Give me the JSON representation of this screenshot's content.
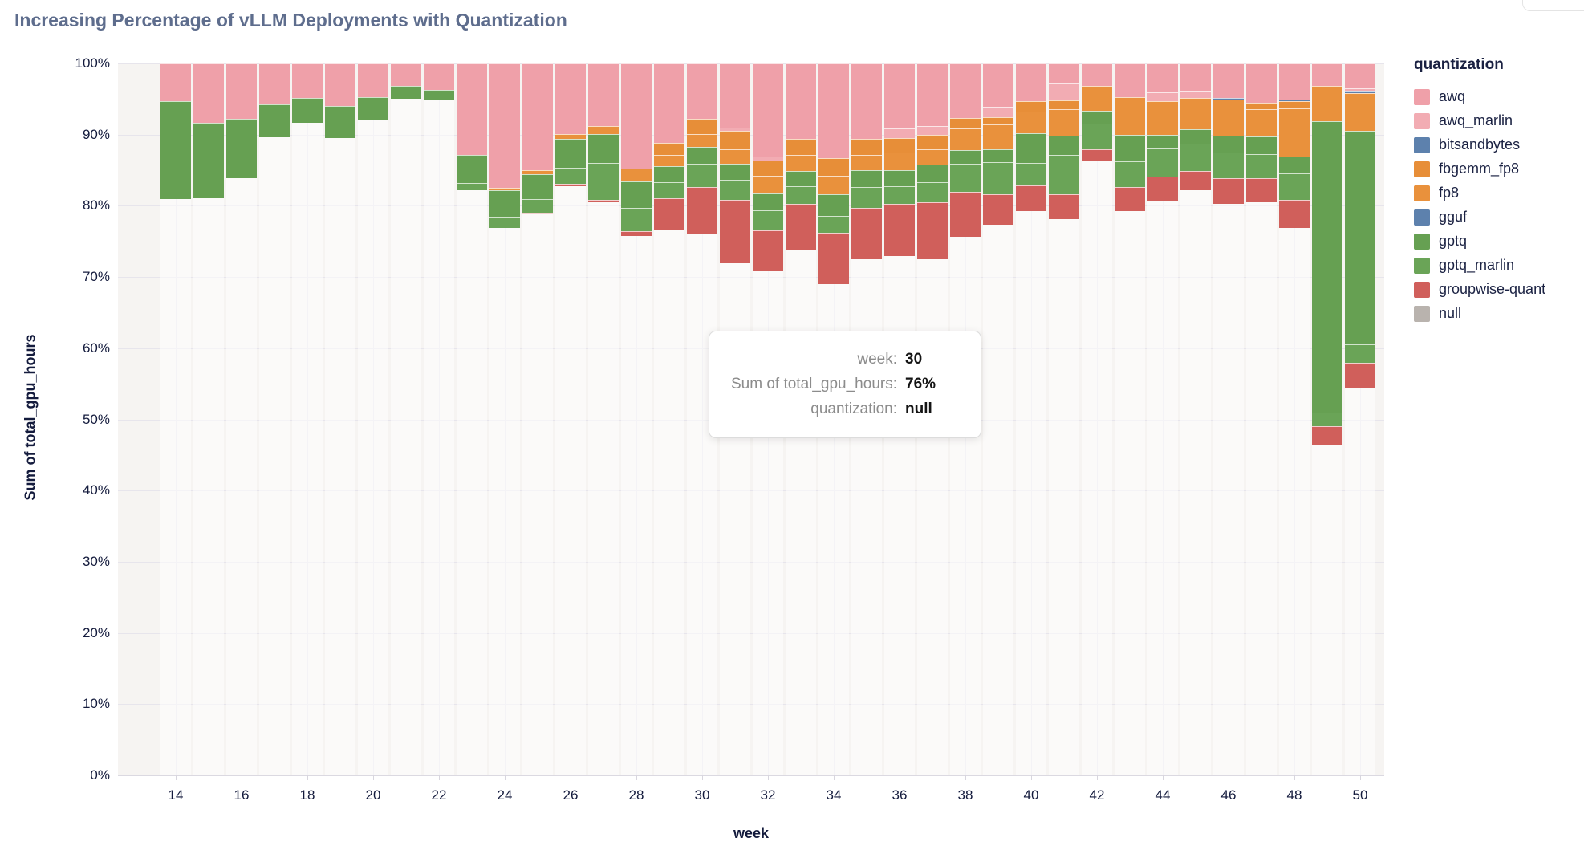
{
  "title": "Increasing Percentage of vLLM Deployments with Quantization",
  "tooltip": {
    "rows": [
      {
        "label": "week:",
        "value": "30"
      },
      {
        "label": "Sum of total_gpu_hours:",
        "value": "76%"
      },
      {
        "label": "quantization:",
        "value": "null"
      }
    ]
  },
  "chart_data": {
    "type": "bar",
    "subtype": "stacked-100-percent",
    "title": "Increasing Percentage of vLLM Deployments with Quantization",
    "xlabel": "week",
    "ylabel": "Sum of total_gpu_hours",
    "ylim": [
      0,
      100
    ],
    "y_tick_labels": [
      "0%",
      "10%",
      "20%",
      "30%",
      "40%",
      "50%",
      "60%",
      "70%",
      "80%",
      "90%",
      "100%"
    ],
    "x": [
      14,
      15,
      16,
      17,
      18,
      19,
      20,
      21,
      22,
      23,
      24,
      25,
      26,
      27,
      28,
      29,
      30,
      31,
      32,
      33,
      34,
      35,
      36,
      37,
      38,
      39,
      40,
      41,
      42,
      43,
      44,
      45,
      46,
      47,
      48,
      49,
      50
    ],
    "x_ticks": [
      14,
      16,
      18,
      20,
      22,
      24,
      26,
      28,
      30,
      32,
      34,
      36,
      38,
      40,
      42,
      44,
      46,
      48,
      50
    ],
    "grid": true,
    "legend_position": "right",
    "legend": {
      "title": "quantization",
      "items": [
        {
          "label": "awq",
          "color": "#efa0a9"
        },
        {
          "label": "awq_marlin",
          "color": "#f2acb3"
        },
        {
          "label": "bitsandbytes",
          "color": "#5d81ad"
        },
        {
          "label": "fbgemm_fp8",
          "color": "#e78e38"
        },
        {
          "label": "fp8",
          "color": "#e9913c"
        },
        {
          "label": "gguf",
          "color": "#5d81ad"
        },
        {
          "label": "gptq",
          "color": "#66a052"
        },
        {
          "label": "gptq_marlin",
          "color": "#6aa457"
        },
        {
          "label": "groupwise-quant",
          "color": "#d05f5b"
        },
        {
          "label": "null",
          "color": "#b9b3ae"
        }
      ]
    },
    "stack_order_bottom_to_top": [
      "null",
      "groupwise-quant",
      "gptq_marlin",
      "gptq",
      "gguf",
      "fp8",
      "fbgemm_fp8",
      "bitsandbytes",
      "awq_marlin",
      "awq"
    ],
    "series": [
      {
        "name": "null",
        "color": "transparent",
        "values": [
          81.0,
          81.1,
          83.9,
          89.6,
          91.7,
          89.5,
          92.1,
          95.0,
          94.8,
          82.2,
          76.9,
          78.8,
          82.8,
          80.5,
          75.8,
          76.6,
          76.0,
          71.9,
          70.8,
          73.8,
          69.0,
          72.5,
          73.0,
          72.5,
          75.7,
          77.3,
          79.3,
          78.1,
          86.3,
          79.3,
          80.7,
          82.2,
          80.3,
          80.5,
          76.9,
          46.3,
          54.5
        ]
      },
      {
        "name": "groupwise-quant",
        "color": "#d05f5b",
        "values": [
          0,
          0,
          0,
          0,
          0,
          0,
          0,
          0,
          0,
          0,
          0,
          0.2,
          0.3,
          0.3,
          0.6,
          4.5,
          6.6,
          8.9,
          5.8,
          6.5,
          7.2,
          7.2,
          7.3,
          8.0,
          6.3,
          4.3,
          3.6,
          3.5,
          1.6,
          3.3,
          3.4,
          2.7,
          3.6,
          3.4,
          3.9,
          2.7,
          3.4
        ]
      },
      {
        "name": "gptq_marlin",
        "color": "#6aa457",
        "values": [
          0,
          0,
          0,
          0,
          0,
          0,
          0,
          0,
          0,
          1.0,
          1.6,
          1.9,
          2.2,
          5.2,
          3.3,
          2.2,
          3.3,
          2.9,
          2.8,
          2.4,
          2.4,
          2.9,
          2.5,
          2.8,
          3.9,
          4.5,
          3.1,
          5.6,
          3.7,
          3.7,
          3.9,
          3.8,
          3.6,
          3.4,
          3.8,
          2.0,
          2.6
        ]
      },
      {
        "name": "gptq",
        "color": "#66a052",
        "values": [
          13.7,
          10.6,
          8.3,
          4.6,
          3.5,
          4.5,
          3.2,
          1.8,
          1.5,
          3.9,
          3.7,
          3.6,
          4.1,
          4.1,
          3.7,
          2.3,
          2.4,
          2.2,
          2.3,
          2.2,
          3.0,
          2.4,
          2.2,
          2.5,
          1.9,
          1.8,
          4.2,
          2.7,
          1.7,
          3.7,
          2.0,
          2.1,
          2.4,
          2.4,
          2.3,
          40.9,
          30.0
        ]
      },
      {
        "name": "gguf",
        "color": "#5d81ad",
        "values": [
          0,
          0,
          0,
          0,
          0,
          0,
          0,
          0,
          0,
          0,
          0,
          0,
          0,
          0,
          0,
          0,
          0,
          0,
          0,
          0,
          0,
          0,
          0,
          0,
          0,
          0,
          0,
          0,
          0,
          0,
          0,
          0,
          0,
          0,
          0,
          0,
          0
        ]
      },
      {
        "name": "fp8",
        "color": "#e9913c",
        "values": [
          0,
          0,
          0,
          0,
          0,
          0,
          0,
          0,
          0,
          0,
          0.3,
          0.5,
          0.7,
          1.1,
          1.8,
          1.6,
          1.8,
          2.0,
          2.5,
          2.3,
          2.6,
          2.2,
          2.5,
          2.1,
          3.1,
          3.5,
          3.0,
          3.7,
          3.5,
          5.3,
          4.7,
          4.3,
          5.0,
          3.9,
          6.8,
          4.9,
          5.3
        ]
      },
      {
        "name": "fbgemm_fp8",
        "color": "#e78e38",
        "values": [
          0,
          0,
          0,
          0,
          0,
          0,
          0,
          0,
          0,
          0,
          0,
          0,
          0,
          0,
          0,
          1.6,
          2.1,
          2.6,
          2.2,
          2.2,
          2.5,
          2.2,
          2.0,
          2.1,
          1.4,
          1.1,
          1.5,
          1.2,
          0,
          0,
          0,
          0,
          0,
          0.9,
          1.0,
          0,
          0
        ]
      },
      {
        "name": "bitsandbytes",
        "color": "#5d81ad",
        "values": [
          0,
          0,
          0,
          0,
          0,
          0,
          0,
          0,
          0,
          0,
          0,
          0,
          0,
          0,
          0,
          0,
          0,
          0,
          0,
          0,
          0,
          0,
          0,
          0,
          0,
          0,
          0,
          0,
          0,
          0,
          0,
          0,
          0.3,
          0,
          0.2,
          0,
          0.3
        ]
      },
      {
        "name": "awq_marlin",
        "color": "#f2acb3",
        "values": [
          0,
          0,
          0,
          0,
          0,
          0,
          0,
          0,
          0,
          0,
          0,
          0,
          0,
          0,
          0,
          0,
          0,
          0.5,
          0.5,
          0,
          0,
          0,
          1.4,
          1.2,
          0,
          1.4,
          0,
          2.4,
          0,
          0,
          1.2,
          1.0,
          0,
          0,
          0,
          0,
          0.4
        ]
      },
      {
        "name": "awq",
        "color": "#efa0a9",
        "values": [
          5.3,
          8.3,
          7.8,
          5.8,
          4.8,
          6.0,
          4.7,
          3.2,
          3.7,
          12.9,
          17.5,
          15.0,
          9.9,
          8.8,
          14.8,
          11.2,
          7.8,
          9.0,
          13.1,
          10.6,
          13.3,
          10.6,
          9.1,
          8.8,
          7.7,
          6.1,
          5.3,
          2.8,
          3.2,
          4.7,
          4.1,
          3.9,
          4.8,
          5.5,
          5.1,
          3.2,
          3.5
        ]
      }
    ]
  }
}
